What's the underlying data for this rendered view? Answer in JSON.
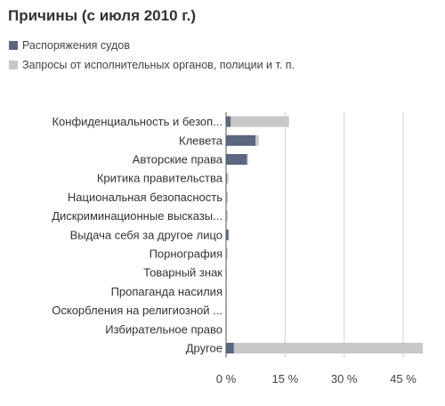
{
  "chart_data": {
    "type": "bar",
    "orientation": "horizontal",
    "stacked": true,
    "title": "Причины (с июля 2010 г.)",
    "categories": [
      "Конфиденциальность и безоп...",
      "Клевета",
      "Авторские права",
      "Критика правительства",
      "Национальная безопасность",
      "Дискриминационные высказы...",
      "Выдача себя за другое лицо",
      "Порнография",
      "Товарный знак",
      "Пропаганда насилия",
      "Оскорбления на религиозной ...",
      "Избирательное право",
      "Другое"
    ],
    "series": [
      {
        "name": "Распоряжения судов",
        "color": "#5b6680",
        "values": [
          1.2,
          7.5,
          5.3,
          0.2,
          0.1,
          0.1,
          0.6,
          0.1,
          0.1,
          0.05,
          0.05,
          0.05,
          2.0
        ]
      },
      {
        "name": "Запросы от исполнительных органов, полиции и т. п.",
        "color": "#c8c8c8",
        "values": [
          14.8,
          0.8,
          0.3,
          0.4,
          0.4,
          0.3,
          0.2,
          0.3,
          0.1,
          0.1,
          0.1,
          0.05,
          48.0
        ]
      }
    ],
    "xlim": [
      0,
      52
    ],
    "xticks": [
      0,
      15,
      30,
      45
    ],
    "xtick_labels": [
      "0 %",
      "15 %",
      "30 %",
      "45 %"
    ],
    "grid": true,
    "legend_position": "top-left"
  }
}
